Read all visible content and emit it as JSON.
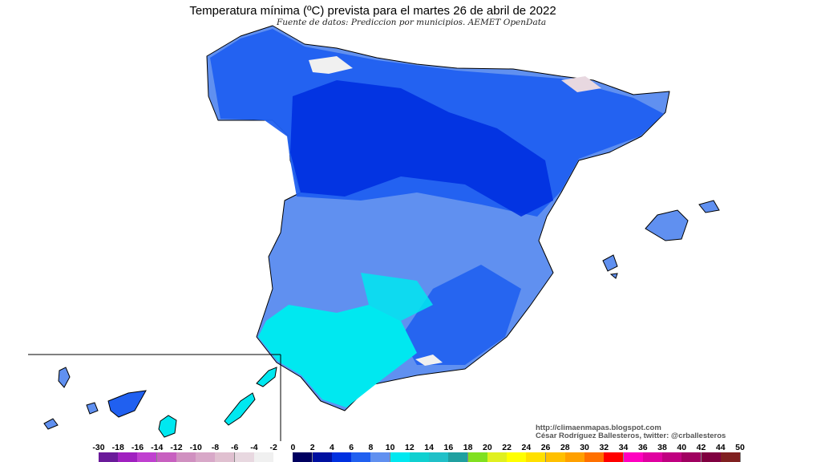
{
  "title": "Temperatura mínima (ºC) prevista para el martes 26 de abril de 2022",
  "subtitle": "Fuente de datos: Prediccion por municipios. AEMET OpenData",
  "credits": {
    "url": "http://climaenmapas.blogspot.com",
    "author": "César Rodríguez Ballesteros, twitter: @crballesteros"
  },
  "legend": {
    "labels": [
      "-30",
      "-18",
      "-16",
      "-14",
      "-12",
      "-10",
      "-8",
      "-6",
      "-4",
      "-2",
      "0",
      "2",
      "4",
      "6",
      "8",
      "10",
      "12",
      "14",
      "16",
      "18",
      "20",
      "22",
      "24",
      "26",
      "28",
      "30",
      "32",
      "34",
      "36",
      "38",
      "40",
      "42",
      "44",
      "50"
    ],
    "colors": [
      "#6a1a9a",
      "#a020c0",
      "#c040d0",
      "#c860c0",
      "#d090c0",
      "#d8a8c8",
      "#e0c0d0",
      "#e8d8e0",
      "#f0f0f0",
      "#ffffff",
      "#000060",
      "#0010a0",
      "#0030e0",
      "#2060f0",
      "#6090f0",
      "#00e8f0",
      "#10d0d0",
      "#20c0c8",
      "#20a0a0",
      "#80e020",
      "#e0f020",
      "#ffff00",
      "#ffe000",
      "#ffc000",
      "#ffa000",
      "#ff7000",
      "#ff0000",
      "#ff00c0",
      "#e000a0",
      "#c00080",
      "#a00060",
      "#800040",
      "#802020"
    ]
  }
}
